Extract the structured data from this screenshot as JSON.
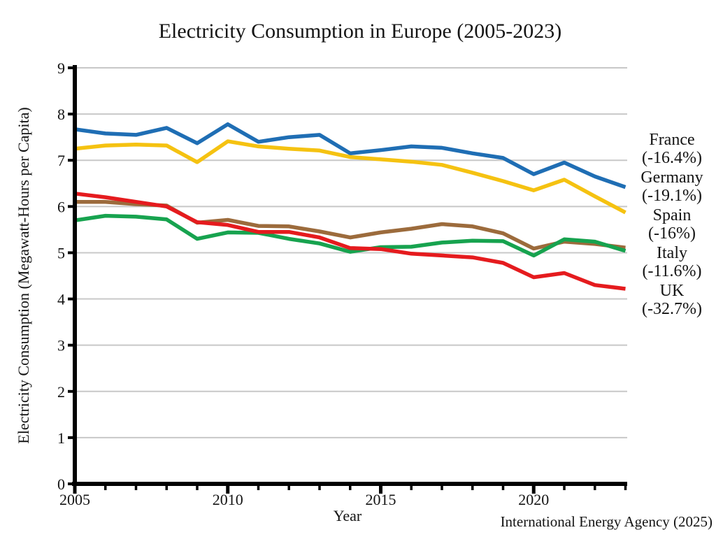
{
  "chart_data": {
    "type": "line",
    "title": "Electricity Consumption in Europe (2005-2023)",
    "xlabel": "Year",
    "ylabel": "Electricity Consumption (Megawatt-Hours per Capita)",
    "source": "International Energy Agency (2025)",
    "grid": true,
    "legend_position": "right-stacked",
    "grid_color": "#c8c8c8",
    "axis_color": "#000000",
    "ylim": [
      0,
      9
    ],
    "yticks": [
      0,
      1,
      2,
      3,
      4,
      5,
      6,
      7,
      8,
      9
    ],
    "xticks_major": [
      2005,
      2010,
      2015,
      2020
    ],
    "x": [
      2005,
      2006,
      2007,
      2008,
      2009,
      2010,
      2011,
      2012,
      2013,
      2014,
      2015,
      2016,
      2017,
      2018,
      2019,
      2020,
      2021,
      2022,
      2023
    ],
    "series": [
      {
        "name": "France",
        "pct_label": "(-16.4%)",
        "color": "#1f6eb4",
        "values": [
          7.67,
          7.58,
          7.55,
          7.7,
          7.37,
          7.78,
          7.4,
          7.5,
          7.55,
          7.15,
          7.22,
          7.3,
          7.27,
          7.15,
          7.05,
          6.7,
          6.95,
          6.65,
          6.42
        ]
      },
      {
        "name": "Germany",
        "pct_label": "(-19.1%)",
        "color": "#f5c211",
        "values": [
          7.25,
          7.32,
          7.34,
          7.32,
          6.96,
          7.41,
          7.3,
          7.25,
          7.21,
          7.07,
          7.02,
          6.97,
          6.9,
          6.73,
          6.55,
          6.35,
          6.58,
          6.22,
          5.87
        ]
      },
      {
        "name": "Spain",
        "pct_label": "(-16%)",
        "color": "#9c6b3c",
        "values": [
          6.1,
          6.1,
          6.05,
          6.02,
          5.65,
          5.71,
          5.58,
          5.57,
          5.46,
          5.33,
          5.44,
          5.52,
          5.62,
          5.57,
          5.42,
          5.09,
          5.24,
          5.19,
          5.11
        ]
      },
      {
        "name": "Italy",
        "pct_label": "(-11.6%)",
        "color": "#17a34f",
        "values": [
          5.7,
          5.8,
          5.78,
          5.72,
          5.3,
          5.44,
          5.43,
          5.3,
          5.2,
          5.02,
          5.12,
          5.13,
          5.22,
          5.26,
          5.25,
          4.94,
          5.29,
          5.24,
          5.04
        ]
      },
      {
        "name": "UK",
        "pct_label": "(-32.7%)",
        "color": "#e51b1e",
        "values": [
          6.28,
          6.2,
          6.1,
          6.0,
          5.66,
          5.6,
          5.45,
          5.45,
          5.33,
          5.1,
          5.08,
          4.98,
          4.94,
          4.9,
          4.78,
          4.47,
          4.56,
          4.3,
          4.22
        ]
      }
    ]
  }
}
